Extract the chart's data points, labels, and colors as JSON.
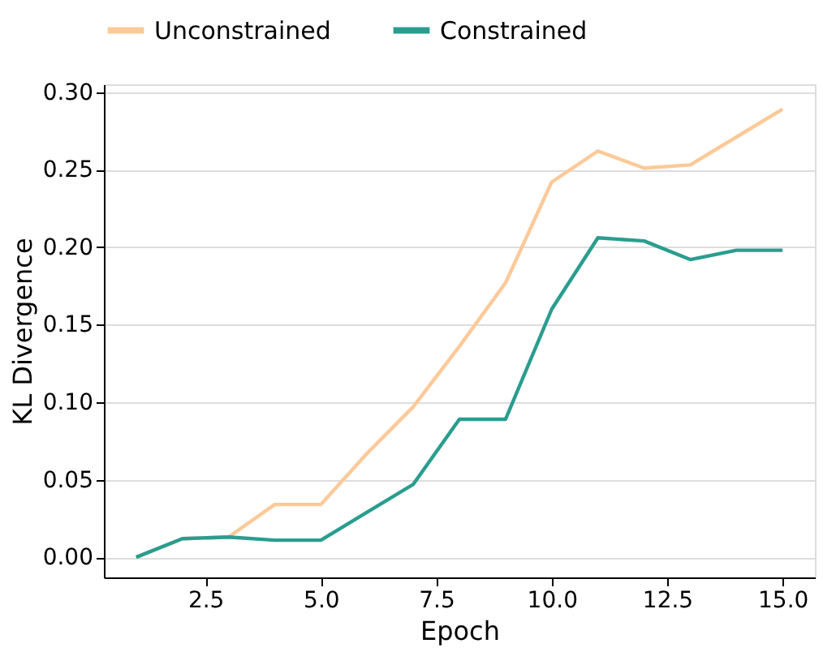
{
  "chart_data": {
    "type": "line",
    "xlabel": "Epoch",
    "ylabel": "KL Divergence",
    "x": [
      1,
      2,
      3,
      4,
      5,
      6,
      7,
      8,
      9,
      10,
      11,
      12,
      13,
      14,
      15
    ],
    "series": [
      {
        "name": "Unconstrained",
        "color": "#fdc998",
        "values": [
          0.0,
          0.012,
          0.013,
          0.034,
          0.034,
          0.067,
          0.097,
          0.136,
          0.177,
          0.242,
          0.262,
          0.251,
          0.253,
          0.271,
          0.289
        ]
      },
      {
        "name": "Constrained",
        "color": "#2a9d8f",
        "values": [
          0.0,
          0.012,
          0.013,
          0.011,
          0.011,
          0.029,
          0.047,
          0.089,
          0.089,
          0.16,
          0.206,
          0.204,
          0.192,
          0.198,
          0.198
        ]
      }
    ],
    "xlim": [
      0.3,
      15.7
    ],
    "xticks": [
      {
        "value": 2.5,
        "label": "2.5"
      },
      {
        "value": 5,
        "label": "5.0"
      },
      {
        "value": 7.5,
        "label": "7.5"
      },
      {
        "value": 10,
        "label": "10.0"
      },
      {
        "value": 12.5,
        "label": "12.5"
      },
      {
        "value": 15,
        "label": "15.0"
      }
    ],
    "ylim": [
      -0.013,
      0.305
    ],
    "yticks": [
      {
        "value": 0,
        "label": "0.00"
      },
      {
        "value": 0.05,
        "label": "0.05"
      },
      {
        "value": 0.1,
        "label": "0.10"
      },
      {
        "value": 0.15,
        "label": "0.15"
      },
      {
        "value": 0.2,
        "label": "0.20"
      },
      {
        "value": 0.25,
        "label": "0.25"
      },
      {
        "value": 0.3,
        "label": "0.30"
      }
    ],
    "grid": "y",
    "legend": "top",
    "line_style": "solid",
    "marker": "none"
  }
}
